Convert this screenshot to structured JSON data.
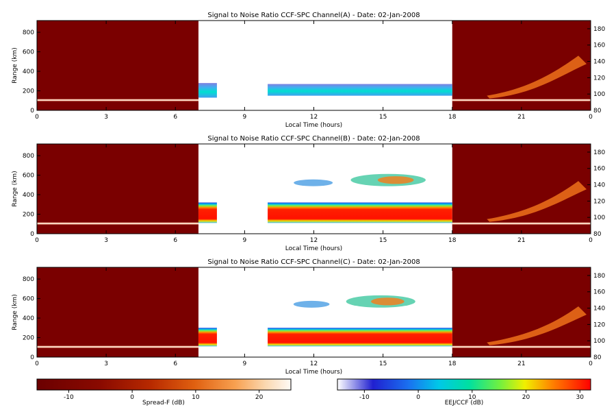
{
  "figure": {
    "panels": [
      {
        "title": "Signal to Noise Ratio CCF-SPC Channel(A) - Date: 02-Jan-2008"
      },
      {
        "title": "Signal to Noise Ratio CCF-SPC Channel(B) - Date: 02-Jan-2008"
      },
      {
        "title": "Signal to Noise Ratio CCF-SPC Channel(C) - Date: 02-Jan-2008"
      }
    ],
    "xlabel": "Local Time (hours)",
    "ylabel": "Range (km)",
    "x_ticks": [
      "0",
      "3",
      "6",
      "9",
      "12",
      "15",
      "18",
      "21",
      "0"
    ],
    "y_left_ticks": [
      "0",
      "200",
      "400",
      "600",
      "800"
    ],
    "y_right_ticks": [
      "80",
      "100",
      "120",
      "140",
      "160",
      "180"
    ],
    "colorbar_left": {
      "label": "Spread-F (dB)",
      "ticks": [
        "-10",
        "0",
        "10",
        "20"
      ],
      "range": [
        -15,
        25
      ]
    },
    "colorbar_right": {
      "label": "EEJ/CCF (dB)",
      "ticks": [
        "-10",
        "0",
        "10",
        "20",
        "30"
      ],
      "range": [
        -15,
        32
      ]
    }
  },
  "chart_data": [
    {
      "type": "heatmap",
      "title": "Signal to Noise Ratio CCF-SPC Channel(A) - Date: 02-Jan-2008",
      "xlabel": "Local Time (hours)",
      "ylabel": "Range (km)",
      "xlim": [
        0,
        24
      ],
      "ylim_left": [
        0,
        920
      ],
      "ylim_right": [
        80,
        190
      ],
      "spread_f_mode_hours": [
        [
          0,
          7
        ],
        [
          18,
          24
        ]
      ],
      "eej_ccf_mode_hours": [
        [
          7,
          18
        ]
      ],
      "features": [
        {
          "name": "Spread-F background",
          "hours": [
            0,
            7
          ],
          "range_km": [
            0,
            920
          ],
          "snr_db": -13
        },
        {
          "name": "Spread-F background",
          "hours": [
            18,
            24
          ],
          "range_km": [
            0,
            920
          ],
          "snr_db": -13
        },
        {
          "name": "Spread-F echo line",
          "hours": [
            0,
            7
          ],
          "range_km": [
            95,
            115
          ],
          "snr_db": 10
        },
        {
          "name": "Spread-F echo line",
          "hours": [
            18,
            24
          ],
          "range_km": [
            95,
            115
          ],
          "snr_db": 10
        },
        {
          "name": "Spread-F plume",
          "hours": [
            19.5,
            24
          ],
          "range_km": [
            150,
            560
          ],
          "snr_db": 14
        },
        {
          "name": "EEJ/CCF layer",
          "hours": [
            7,
            7.8
          ],
          "range_km": [
            130,
            280
          ],
          "snr_db": 5
        },
        {
          "name": "EEJ/CCF layer",
          "hours": [
            10,
            18
          ],
          "range_km": [
            150,
            270
          ],
          "snr_db": 4
        }
      ]
    },
    {
      "type": "heatmap",
      "title": "Signal to Noise Ratio CCF-SPC Channel(B) - Date: 02-Jan-2008",
      "xlabel": "Local Time (hours)",
      "ylabel": "Range (km)",
      "xlim": [
        0,
        24
      ],
      "ylim_left": [
        0,
        920
      ],
      "ylim_right": [
        80,
        190
      ],
      "spread_f_mode_hours": [
        [
          0,
          7
        ],
        [
          18,
          24
        ]
      ],
      "eej_ccf_mode_hours": [
        [
          7,
          18
        ]
      ],
      "features": [
        {
          "name": "Spread-F background",
          "hours": [
            0,
            7
          ],
          "range_km": [
            0,
            920
          ],
          "snr_db": -13
        },
        {
          "name": "Spread-F background",
          "hours": [
            18,
            24
          ],
          "range_km": [
            0,
            920
          ],
          "snr_db": -13
        },
        {
          "name": "Spread-F echo line",
          "hours": [
            0,
            7
          ],
          "range_km": [
            95,
            115
          ],
          "snr_db": 10
        },
        {
          "name": "Spread-F echo line",
          "hours": [
            18,
            24
          ],
          "range_km": [
            95,
            115
          ],
          "snr_db": 10
        },
        {
          "name": "Spread-F plume",
          "hours": [
            19.5,
            24
          ],
          "range_km": [
            150,
            540
          ],
          "snr_db": 14
        },
        {
          "name": "EEJ/CCF layer",
          "hours": [
            7,
            7.8
          ],
          "range_km": [
            110,
            320
          ],
          "snr_db": 28
        },
        {
          "name": "EEJ/CCF layer",
          "hours": [
            10,
            18
          ],
          "range_km": [
            110,
            320
          ],
          "snr_db": 28
        },
        {
          "name": "CCF echoes",
          "hours": [
            11,
            17.5
          ],
          "range_km": [
            480,
            620
          ],
          "snr_db": 12
        }
      ]
    },
    {
      "type": "heatmap",
      "title": "Signal to Noise Ratio CCF-SPC Channel(C) - Date: 02-Jan-2008",
      "xlabel": "Local Time (hours)",
      "ylabel": "Range (km)",
      "xlim": [
        0,
        24
      ],
      "ylim_left": [
        0,
        920
      ],
      "ylim_right": [
        80,
        190
      ],
      "spread_f_mode_hours": [
        [
          0,
          7
        ],
        [
          18,
          24
        ]
      ],
      "eej_ccf_mode_hours": [
        [
          7,
          18
        ]
      ],
      "features": [
        {
          "name": "Spread-F background",
          "hours": [
            0,
            7
          ],
          "range_km": [
            0,
            920
          ],
          "snr_db": -13
        },
        {
          "name": "Spread-F background",
          "hours": [
            18,
            24
          ],
          "range_km": [
            0,
            920
          ],
          "snr_db": -13
        },
        {
          "name": "Spread-F echo line",
          "hours": [
            0,
            7
          ],
          "range_km": [
            95,
            115
          ],
          "snr_db": 10
        },
        {
          "name": "Spread-F echo line",
          "hours": [
            18,
            24
          ],
          "range_km": [
            95,
            115
          ],
          "snr_db": 10
        },
        {
          "name": "Spread-F plume",
          "hours": [
            19.5,
            24
          ],
          "range_km": [
            150,
            520
          ],
          "snr_db": 14
        },
        {
          "name": "EEJ/CCF layer",
          "hours": [
            7,
            7.8
          ],
          "range_km": [
            110,
            300
          ],
          "snr_db": 28
        },
        {
          "name": "EEJ/CCF layer",
          "hours": [
            10,
            18
          ],
          "range_km": [
            110,
            300
          ],
          "snr_db": 28
        },
        {
          "name": "CCF echoes",
          "hours": [
            11,
            17
          ],
          "range_km": [
            500,
            640
          ],
          "snr_db": 12
        }
      ]
    }
  ]
}
